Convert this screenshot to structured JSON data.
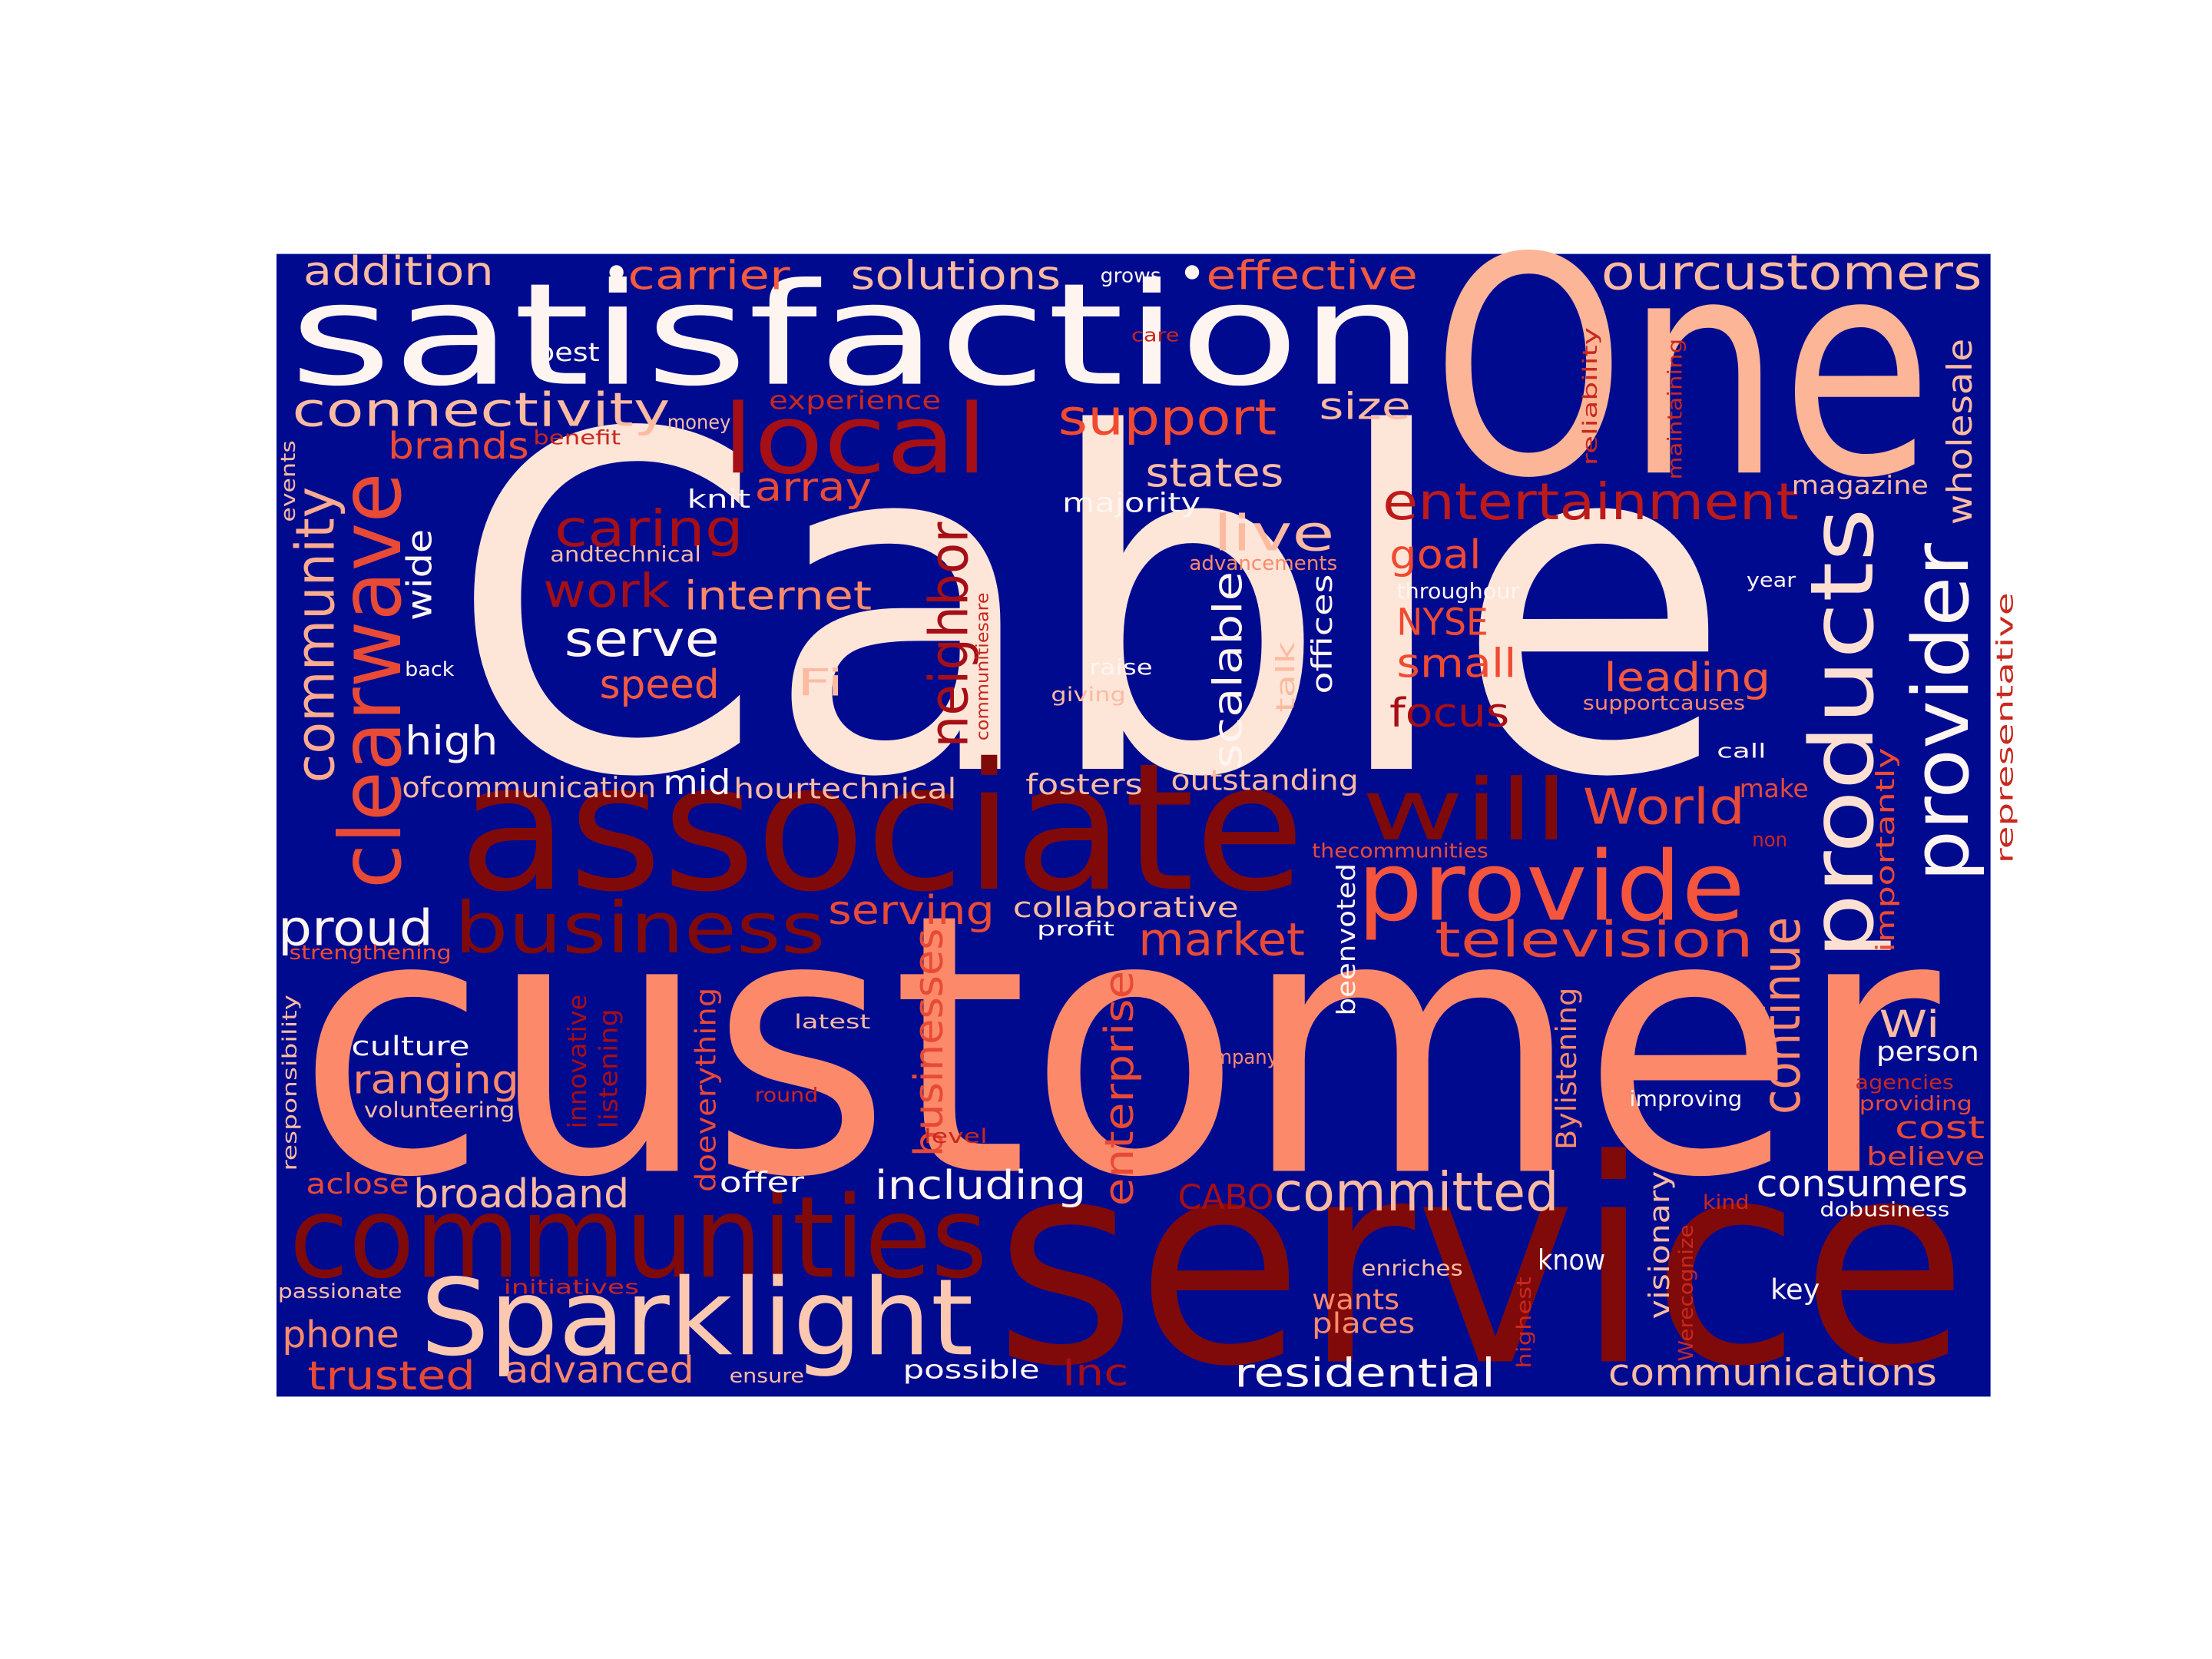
{
  "words": [
    "Cable",
    "customer",
    "service",
    "satisfaction",
    "One",
    "associate",
    "communities",
    "Sparklight",
    "provide",
    "products",
    "provider",
    "local",
    "clearwave",
    "community",
    "business",
    "will",
    "neighbor",
    "continue",
    "entertainment",
    "ourcustomers",
    "connectivity",
    "support",
    "addition",
    "carrier",
    "solutions",
    "grows",
    "effective",
    "best",
    "money",
    "experience",
    "care",
    "size",
    "brands",
    "benefit",
    "states",
    "array",
    "knit",
    "magazine",
    "wholesale",
    "reliability",
    "maintaining",
    "events",
    "caring",
    "majority",
    "live",
    "goal",
    "andtechnical",
    "wide",
    "advancements",
    "work",
    "internet",
    "offices",
    "throughour",
    "year",
    "NYSE",
    "scalable",
    "talk",
    "representative",
    "serve",
    "small",
    "back",
    "raise",
    "Fi",
    "giving",
    "speed",
    "communitiesare",
    "leading",
    "focus",
    "supportcauses",
    "high",
    "call",
    "importantly",
    "ofcommunication",
    "mid",
    "hourtechnical",
    "fosters",
    "outstanding",
    "make",
    "World",
    "non",
    "thecommunities",
    "serving",
    "collaborative",
    "beenvoted",
    "proud",
    "market",
    "television",
    "profit",
    "strengthening",
    "businesses",
    "enterprise",
    "innovative",
    "listening",
    "doeverything",
    "responsibility",
    "latest",
    "Wi",
    "culture",
    "company",
    "person",
    "ranging",
    "agencies",
    "providing",
    "improving",
    "round",
    "volunteering",
    "Bylistening",
    "cost",
    "level",
    "believe",
    "aclose",
    "offer",
    "including",
    "consumers",
    "broadband",
    "CABO",
    "committed",
    "kind",
    "dobusiness",
    "visionary",
    "know",
    "enriches",
    "passionate",
    "initiatives",
    "wants",
    "key",
    "highest",
    "Werecognize",
    "places",
    "phone",
    "trusted",
    "advanced",
    "ensure",
    "possible",
    "Inc",
    "residential",
    "communications"
  ]
}
